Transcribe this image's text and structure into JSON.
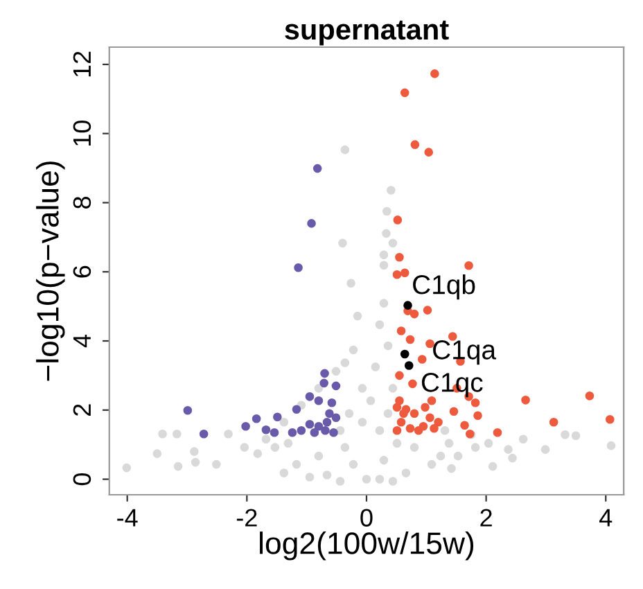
{
  "chart_data": {
    "type": "scatter",
    "title": "supernatant",
    "xlabel": "log2(100w/15w)",
    "ylabel": "−log10(p−value)",
    "xlim": [
      -4.3,
      4.3
    ],
    "ylim": [
      -0.45,
      12.5
    ],
    "xticks": [
      -4,
      -2,
      0,
      2,
      4
    ],
    "yticks": [
      0,
      2,
      4,
      6,
      8,
      10,
      12
    ],
    "grid": false,
    "legend": false,
    "marker": "circle",
    "series": [
      {
        "color": "#d9d9d9",
        "x": [
          -4.01,
          -3.5,
          -3.41,
          -3.17,
          -3.15,
          -2.88,
          -2.86,
          -2.51,
          -2.31,
          -2.04,
          3.32,
          3.5,
          4.09,
          2.99,
          2.62,
          2.37,
          2.11,
          2.44,
          -0.36,
          0.41,
          0.34,
          0.33,
          0.44,
          -0.4,
          0.29,
          0.29,
          -0.26,
          -0.15,
          -0.22,
          -0.36,
          -0.51,
          -0.8,
          -1.09,
          -1.38,
          -1.68,
          0.29,
          0.22,
          0.15,
          0.36,
          0.44,
          0.51,
          0.8,
          1.38,
          1.82,
          1.53,
          1.09,
          0.66,
          0,
          -0.66,
          -1.17,
          -1.53,
          -1.82,
          -0.8,
          -0.36,
          -0.07,
          0.07,
          -0.07,
          -0.29,
          -0.44,
          0.22,
          0.36,
          -0.22,
          0.29,
          -1.31,
          1.31,
          1.75,
          2.04,
          1.24,
          1.42,
          -1.38,
          -0.95,
          0.22,
          -0.44,
          0.44
        ],
        "values": [
          0.33,
          0.74,
          1.31,
          1.31,
          0.37,
          0.8,
          0.49,
          0.43,
          1.31,
          0.92,
          1.29,
          1.26,
          0.97,
          0.86,
          1.16,
          0.86,
          0.37,
          0.61,
          9.53,
          8.36,
          7.75,
          7.11,
          6.83,
          6.83,
          6.49,
          6.19,
          5.67,
          4.72,
          3.74,
          3.37,
          3.12,
          2.63,
          2.14,
          1.65,
          1.16,
          5.09,
          4.47,
          3.25,
          3.86,
          2.63,
          1.04,
          0.92,
          1.04,
          0.92,
          0.67,
          0.43,
          0.18,
          0,
          0.12,
          0.43,
          0.92,
          0.74,
          0.67,
          0.92,
          1.65,
          2.27,
          2.63,
          1.9,
          1.41,
          1.41,
          1.9,
          0.43,
          0.55,
          1.04,
          1.41,
          1.29,
          1.04,
          0.67,
          0.31,
          0.18,
          0.06,
          0.0,
          -0.06,
          -0.06
        ]
      },
      {
        "color": "#6a5aaa",
        "x": [
          -0.82,
          -0.92,
          -1.14,
          -0.7,
          -0.71,
          -0.51,
          -0.95,
          -1.17,
          -0.8,
          -0.58,
          -2.99,
          -2.72,
          -2.02,
          -1.84,
          -1.68,
          -1.49,
          -1.54,
          -1.24,
          -1.09,
          -0.95,
          -0.8,
          -0.66,
          -0.55,
          -0.51,
          -0.69,
          -0.87,
          -0.62
        ],
        "values": [
          8.99,
          7.4,
          6.12,
          3.06,
          2.78,
          2.7,
          2.39,
          2.02,
          2.27,
          2.21,
          1.99,
          1.31,
          1.53,
          1.75,
          1.43,
          1.8,
          1.35,
          1.35,
          1.41,
          1.59,
          1.53,
          1.65,
          1.35,
          1.78,
          1.41,
          1.35,
          1.9
        ]
      },
      {
        "color": "#ee5a3e",
        "x": [
          1.14,
          0.64,
          0.81,
          1.04,
          0.52,
          0.55,
          1.71,
          0.51,
          0.64,
          1.02,
          0.69,
          0.8,
          0.58,
          0.73,
          1.06,
          1.44,
          0.93,
          1.57,
          0.55,
          0.77,
          1.09,
          1.51,
          1.71,
          1.82,
          2.66,
          3.73,
          4.07,
          3.13,
          2.19,
          1.86,
          1.64,
          1.46,
          1.2,
          1.06,
          1.73,
          0.55,
          0.66,
          0.58,
          0.73,
          0.87,
          0.51,
          0.62,
          0.8,
          0.95,
          1.13,
          0.98,
          0.51
        ],
        "values": [
          11.73,
          11.18,
          9.68,
          9.46,
          7.5,
          6.42,
          6.18,
          5.92,
          5.97,
          4.89,
          4.87,
          4.78,
          4.29,
          4.04,
          3.92,
          4.13,
          3.47,
          3.41,
          3.0,
          2.76,
          2.27,
          2.63,
          2.39,
          2.21,
          2.29,
          2.41,
          1.73,
          1.65,
          1.35,
          1.84,
          1.56,
          1.96,
          1.65,
          1.78,
          1.31,
          2.27,
          2.02,
          1.65,
          1.47,
          1.41,
          1.41,
          1.9,
          1.9,
          1.53,
          1.47,
          2.08,
          2.08
        ]
      },
      {
        "color": "#000000",
        "x": [
          0.69,
          0.64,
          0.71
        ],
        "values": [
          5.03,
          3.62,
          3.29
        ]
      }
    ],
    "annotations": [
      {
        "text": "C1qb",
        "x": 0.69,
        "y": 5.03
      },
      {
        "text": "C1qa",
        "x": 0.64,
        "y": 3.62
      },
      {
        "text": "C1qc",
        "x": 0.71,
        "y": 3.29
      }
    ]
  }
}
